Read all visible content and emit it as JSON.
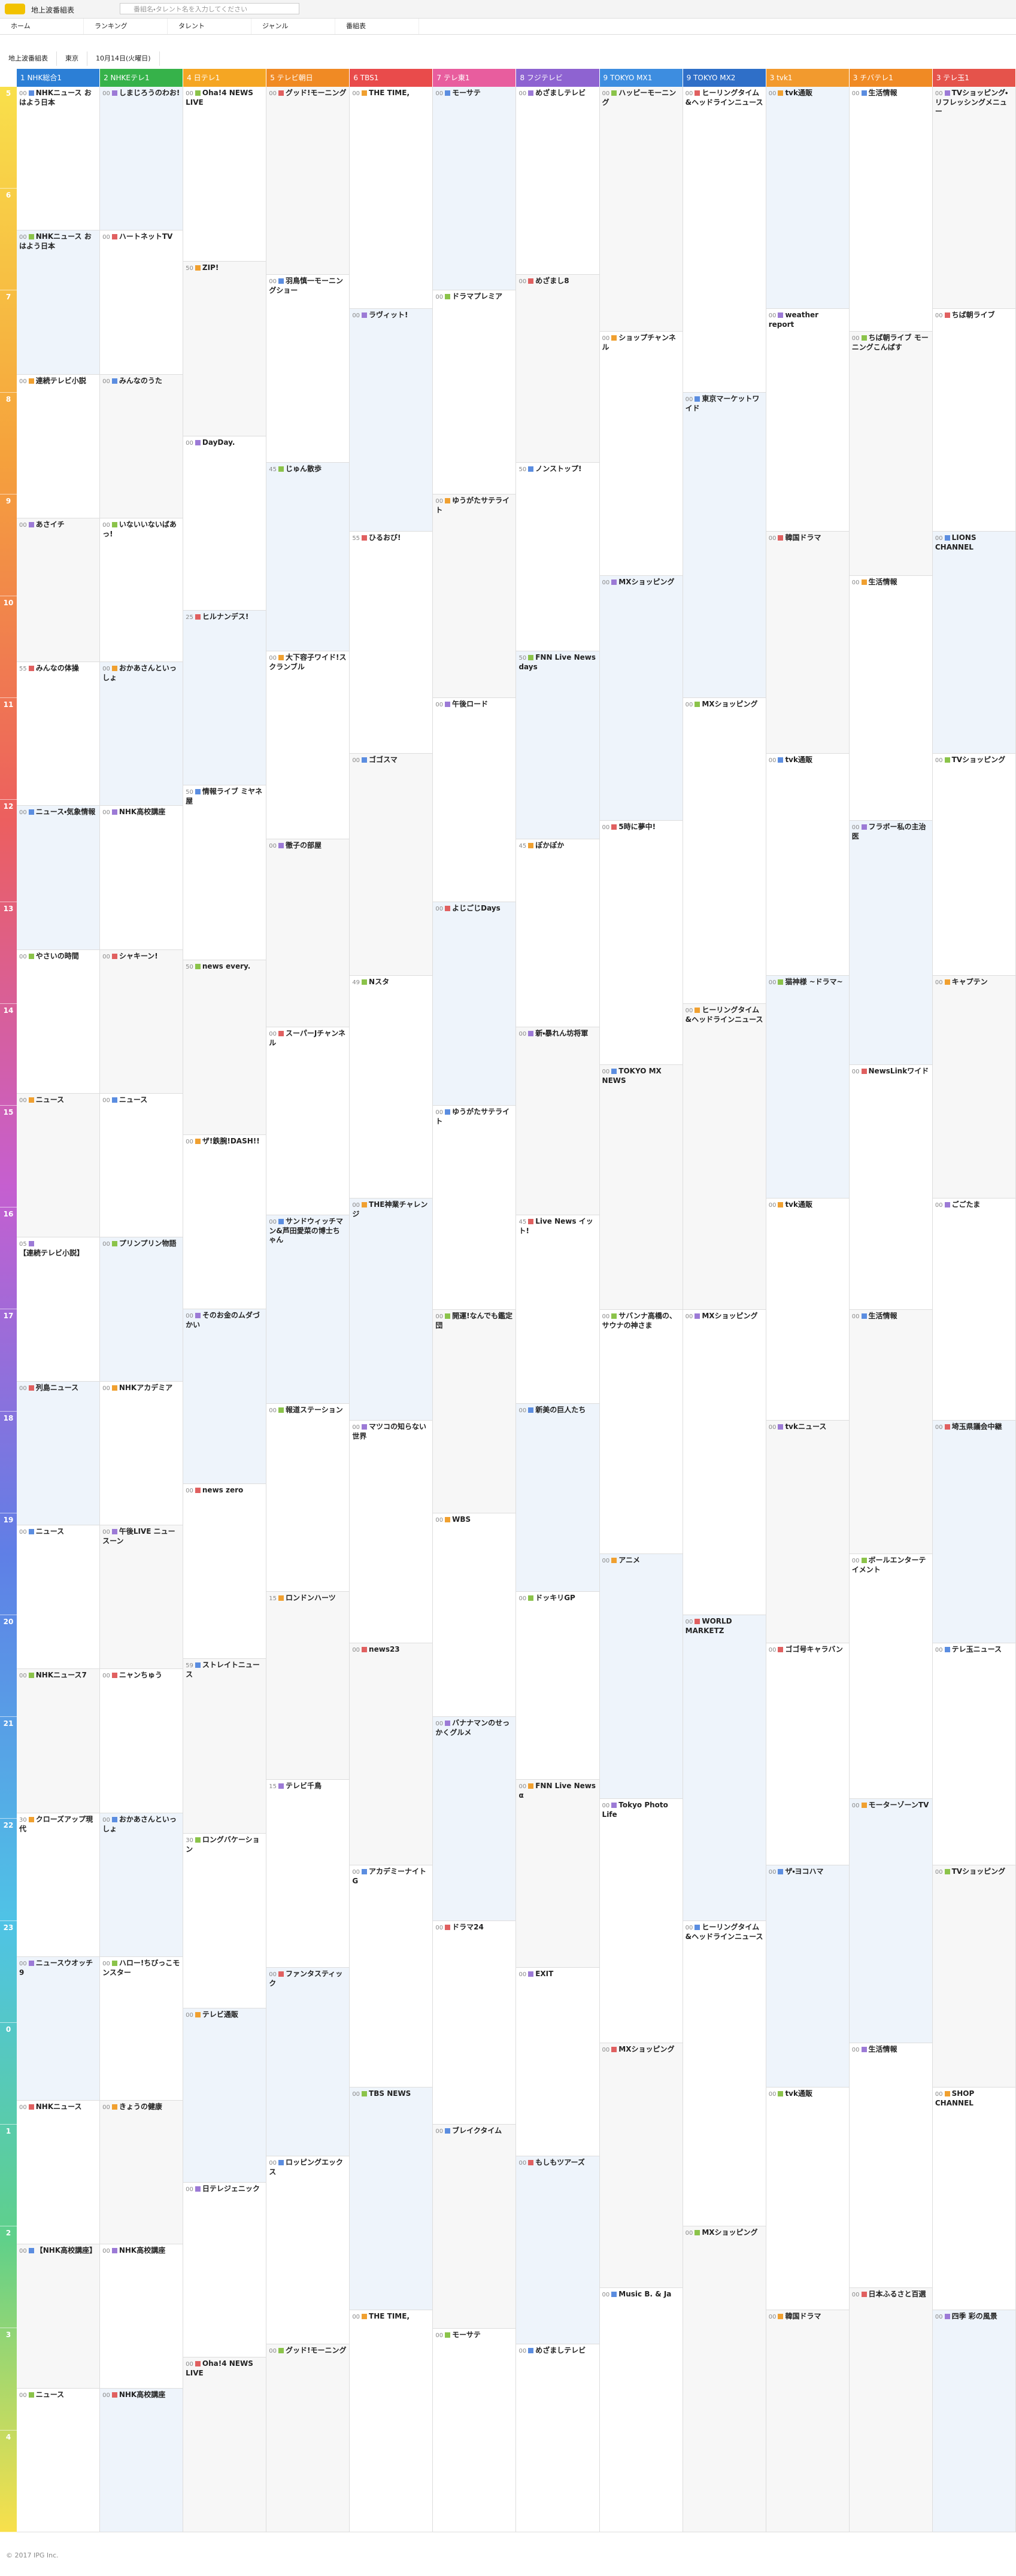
{
  "header": {
    "site": "地上波番組表",
    "search_placeholder": "番組名・タレント名を入力してください"
  },
  "nav": [
    "ホーム",
    "ランキング",
    "タレント",
    "ジャンル",
    "番組表"
  ],
  "breadcrumb": [
    "地上波番組表",
    "東京",
    "10月14日(火曜日)"
  ],
  "hours": [
    "5",
    "6",
    "7",
    "8",
    "9",
    "10",
    "11",
    "12",
    "13",
    "14",
    "15",
    "16",
    "17",
    "18",
    "19",
    "20",
    "21",
    "22",
    "23",
    "0",
    "1",
    "2",
    "3",
    "4"
  ],
  "channels": [
    {
      "name": "1 NHK総合1",
      "color": "#2c7fd6",
      "programs": [
        {
          "time": "00",
          "title": "NHKニュース おはよう日本"
        },
        {
          "time": "00",
          "title": "NHKニュース おはよう日本"
        },
        {
          "time": "00",
          "title": "連続テレビ小説"
        },
        {
          "time": "00",
          "title": "あさイチ"
        },
        {
          "time": "55",
          "title": "みんなの体操"
        },
        {
          "time": "00",
          "title": "ニュース・気象情報"
        },
        {
          "time": "00",
          "title": "やさいの時間"
        },
        {
          "time": "00",
          "title": "ニュース"
        },
        {
          "time": "05",
          "title": "【連続テレビ小説】"
        },
        {
          "time": "00",
          "title": "列島ニュース"
        },
        {
          "time": "00",
          "title": "ニュース"
        },
        {
          "time": "00",
          "title": "NHKニュース7"
        },
        {
          "time": "30",
          "title": "クローズアップ現代"
        },
        {
          "time": "00",
          "title": "ニュースウオッチ9"
        },
        {
          "time": "00",
          "title": "NHKニュース"
        },
        {
          "time": "00",
          "title": "【NHK高校講座】"
        },
        {
          "time": "00",
          "title": "ニュース"
        }
      ]
    },
    {
      "name": "2 NHKEテレ1",
      "color": "#36b24a",
      "programs": [
        {
          "time": "00",
          "title": "しまじろうのわお!"
        },
        {
          "time": "00",
          "title": "ハートネットTV"
        },
        {
          "time": "00",
          "title": "みんなのうた"
        },
        {
          "time": "00",
          "title": "いないいないばあっ!"
        },
        {
          "time": "00",
          "title": "おかあさんといっしょ"
        },
        {
          "time": "00",
          "title": "NHK高校講座"
        },
        {
          "time": "00",
          "title": "シャキーン!"
        },
        {
          "time": "00",
          "title": "ニュース"
        },
        {
          "time": "00",
          "title": "プリンプリン物語"
        },
        {
          "time": "00",
          "title": "NHKアカデミア"
        },
        {
          "time": "00",
          "title": "午後LIVE ニュースーン"
        },
        {
          "time": "00",
          "title": "ニャンちゅう"
        },
        {
          "time": "00",
          "title": "おかあさんといっしょ"
        },
        {
          "time": "00",
          "title": "ハロー!ちびっこモンスター"
        },
        {
          "time": "00",
          "title": "きょうの健康"
        },
        {
          "time": "00",
          "title": "NHK高校講座"
        },
        {
          "time": "00",
          "title": "NHK高校講座"
        }
      ]
    },
    {
      "name": "4 日テレ1",
      "color": "#f5a623",
      "programs": [
        {
          "time": "00",
          "title": "Oha!4 NEWS LIVE"
        },
        {
          "time": "50",
          "title": "ZIP!"
        },
        {
          "time": "00",
          "title": "DayDay."
        },
        {
          "time": "25",
          "title": "ヒルナンデス!"
        },
        {
          "time": "50",
          "title": "情報ライブ ミヤネ屋"
        },
        {
          "time": "50",
          "title": "news every."
        },
        {
          "time": "00",
          "title": "ザ!鉄腕!DASH!!"
        },
        {
          "time": "00",
          "title": "そのお金のムダづかい"
        },
        {
          "time": "00",
          "title": "news zero"
        },
        {
          "time": "59",
          "title": "ストレイトニュース"
        },
        {
          "time": "30",
          "title": "ロングバケーション"
        },
        {
          "time": "00",
          "title": "テレビ通販"
        },
        {
          "time": "00",
          "title": "日テレジェニック"
        },
        {
          "time": "00",
          "title": "Oha!4 NEWS LIVE"
        }
      ]
    },
    {
      "name": "5 テレビ朝日",
      "color": "#f08a24",
      "programs": [
        {
          "time": "00",
          "title": "グッド!モーニング"
        },
        {
          "time": "00",
          "title": "羽鳥慎一モーニングショー"
        },
        {
          "time": "45",
          "title": "じゅん散歩"
        },
        {
          "time": "00",
          "title": "大下容子ワイド!スクランブル"
        },
        {
          "time": "00",
          "title": "徹子の部屋"
        },
        {
          "time": "00",
          "title": "スーパーJチャンネル"
        },
        {
          "time": "00",
          "title": "サンドウィッチマン&芦田愛菜の博士ちゃん"
        },
        {
          "time": "00",
          "title": "報道ステーション"
        },
        {
          "time": "15",
          "title": "ロンドンハーツ"
        },
        {
          "time": "15",
          "title": "テレビ千鳥"
        },
        {
          "time": "00",
          "title": "ファンタスティック"
        },
        {
          "time": "00",
          "title": "ロッピングエックス"
        },
        {
          "time": "00",
          "title": "グッド!モーニング"
        }
      ]
    },
    {
      "name": "6 TBS1",
      "color": "#e94b4b",
      "programs": [
        {
          "time": "00",
          "title": "THE TIME,"
        },
        {
          "time": "00",
          "title": "ラヴィット!"
        },
        {
          "time": "55",
          "title": "ひるおび!"
        },
        {
          "time": "00",
          "title": "ゴゴスマ"
        },
        {
          "time": "49",
          "title": "Nスタ"
        },
        {
          "time": "00",
          "title": "THE神業チャレンジ"
        },
        {
          "time": "00",
          "title": "マツコの知らない世界"
        },
        {
          "time": "00",
          "title": "news23"
        },
        {
          "time": "00",
          "title": "アカデミーナイトG"
        },
        {
          "time": "00",
          "title": "TBS NEWS"
        },
        {
          "time": "00",
          "title": "THE TIME,"
        }
      ]
    },
    {
      "name": "7 テレ東1",
      "color": "#e85d9e",
      "programs": [
        {
          "time": "00",
          "title": "モーサテ"
        },
        {
          "time": "00",
          "title": "ドラマプレミア"
        },
        {
          "time": "00",
          "title": "ゆうがたサテライト"
        },
        {
          "time": "00",
          "title": "午後ロード"
        },
        {
          "time": "00",
          "title": "よじごじDays"
        },
        {
          "time": "00",
          "title": "ゆうがたサテライト"
        },
        {
          "time": "00",
          "title": "開運!なんでも鑑定団"
        },
        {
          "time": "00",
          "title": "WBS"
        },
        {
          "time": "00",
          "title": "バナナマンのせっかくグルメ"
        },
        {
          "time": "00",
          "title": "ドラマ24"
        },
        {
          "time": "00",
          "title": "ブレイクタイム"
        },
        {
          "time": "00",
          "title": "モーサテ"
        }
      ]
    },
    {
      "name": "8 フジテレビ",
      "color": "#8e63d1",
      "programs": [
        {
          "time": "00",
          "title": "めざましテレビ"
        },
        {
          "time": "00",
          "title": "めざまし8"
        },
        {
          "time": "50",
          "title": "ノンストップ!"
        },
        {
          "time": "50",
          "title": "FNN Live News days"
        },
        {
          "time": "45",
          "title": "ぽかぽか"
        },
        {
          "time": "00",
          "title": "新・暴れん坊将軍"
        },
        {
          "time": "45",
          "title": "Live News イット!"
        },
        {
          "time": "00",
          "title": "新美の巨人たち"
        },
        {
          "time": "00",
          "title": "ドッキリGP"
        },
        {
          "time": "00",
          "title": "FNN Live News α"
        },
        {
          "time": "00",
          "title": "EXIT"
        },
        {
          "time": "00",
          "title": "もしもツアーズ"
        },
        {
          "time": "00",
          "title": "めざましテレビ"
        }
      ]
    },
    {
      "name": "9 TOKYO MX1",
      "color": "#3d8de0",
      "programs": [
        {
          "time": "00",
          "title": "ハッピーモーニング"
        },
        {
          "time": "00",
          "title": "ショップチャンネル"
        },
        {
          "time": "00",
          "title": "MXショッピング"
        },
        {
          "time": "00",
          "title": "5時に夢中!"
        },
        {
          "time": "00",
          "title": "TOKYO MX NEWS"
        },
        {
          "time": "00",
          "title": "サバンナ高橋の、サウナの神さま"
        },
        {
          "time": "00",
          "title": "アニメ"
        },
        {
          "time": "00",
          "title": "Tokyo Photo Life"
        },
        {
          "time": "00",
          "title": "MXショッピング"
        },
        {
          "time": "00",
          "title": "Music B. & Ja"
        }
      ]
    },
    {
      "name": "9 TOKYO MX2",
      "color": "#2f6fc8",
      "programs": [
        {
          "time": "00",
          "title": "ヒーリングタイム&ヘッドラインニュース"
        },
        {
          "time": "00",
          "title": "東京マーケットワイド"
        },
        {
          "time": "00",
          "title": "MXショッピング"
        },
        {
          "time": "00",
          "title": "ヒーリングタイム&ヘッドラインニュース"
        },
        {
          "time": "00",
          "title": "MXショッピング"
        },
        {
          "time": "00",
          "title": "WORLD MARKETZ"
        },
        {
          "time": "00",
          "title": "ヒーリングタイム&ヘッドラインニュース"
        },
        {
          "time": "00",
          "title": "MXショッピング"
        }
      ]
    },
    {
      "name": "3 tvk1",
      "color": "#f29a2e",
      "programs": [
        {
          "time": "00",
          "title": "tvk通販"
        },
        {
          "time": "00",
          "title": "weather report"
        },
        {
          "time": "00",
          "title": "韓国ドラマ"
        },
        {
          "time": "00",
          "title": "tvk通販"
        },
        {
          "time": "00",
          "title": "猫神様 ~ドラマ~"
        },
        {
          "time": "00",
          "title": "tvk通販"
        },
        {
          "time": "00",
          "title": "tvkニュース"
        },
        {
          "time": "00",
          "title": "ゴゴ号キャラバン"
        },
        {
          "time": "00",
          "title": "ザ・ヨコハマ"
        },
        {
          "time": "00",
          "title": "tvk通販"
        },
        {
          "time": "00",
          "title": "韓国ドラマ"
        }
      ]
    },
    {
      "name": "3 チバテレ1",
      "color": "#f08a24",
      "programs": [
        {
          "time": "00",
          "title": "生活情報"
        },
        {
          "time": "00",
          "title": "ちば朝ライブ モーニングこんぱす"
        },
        {
          "time": "00",
          "title": "生活情報"
        },
        {
          "time": "00",
          "title": "フラボー私の主治医"
        },
        {
          "time": "00",
          "title": "NewsLinkワイド"
        },
        {
          "time": "00",
          "title": "生活情報"
        },
        {
          "time": "00",
          "title": "ボールエンターテイメント"
        },
        {
          "time": "00",
          "title": "モーターゾーンTV"
        },
        {
          "time": "00",
          "title": "生活情報"
        },
        {
          "time": "00",
          "title": "日本ふるさと百選"
        }
      ]
    },
    {
      "name": "3 テレ玉1",
      "color": "#e5534b",
      "programs": [
        {
          "time": "00",
          "title": "TVショッピング・リフレッシングメニュー"
        },
        {
          "time": "00",
          "title": "ちば朝ライブ"
        },
        {
          "time": "00",
          "title": "LIONS CHANNEL"
        },
        {
          "time": "00",
          "title": "TVショッピング"
        },
        {
          "time": "00",
          "title": "キャプテン"
        },
        {
          "time": "00",
          "title": "ごごたま"
        },
        {
          "time": "00",
          "title": "埼玉県議会中継"
        },
        {
          "time": "00",
          "title": "テレ玉ニュース"
        },
        {
          "time": "00",
          "title": "TVショッピング"
        },
        {
          "time": "00",
          "title": "SHOP CHANNEL"
        },
        {
          "time": "00",
          "title": "四季 彩の風景"
        }
      ]
    }
  ],
  "footer": "© 2017 IPG Inc."
}
